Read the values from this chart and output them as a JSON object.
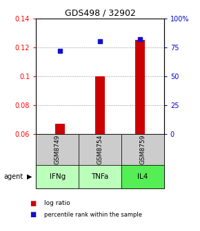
{
  "title": "GDS498 / 32902",
  "samples": [
    "GSM8749",
    "GSM8754",
    "GSM8759"
  ],
  "agents": [
    "IFNg",
    "TNFa",
    "IL4"
  ],
  "log_ratio": [
    0.067,
    0.1,
    0.125
  ],
  "percentile_rank": [
    72,
    80,
    82
  ],
  "ylim_left": [
    0.06,
    0.14
  ],
  "ylim_right": [
    0,
    100
  ],
  "yticks_left": [
    0.06,
    0.08,
    0.1,
    0.12,
    0.14
  ],
  "yticks_right": [
    0,
    25,
    50,
    75,
    100
  ],
  "ytick_labels_right": [
    "0",
    "25",
    "50",
    "75",
    "100%"
  ],
  "bar_color": "#cc0000",
  "dot_color": "#1111cc",
  "agent_colors": [
    "#bbffbb",
    "#bbffbb",
    "#55ee55"
  ],
  "sample_bg": "#cccccc",
  "grid_color": "#888888",
  "bar_width": 0.25
}
